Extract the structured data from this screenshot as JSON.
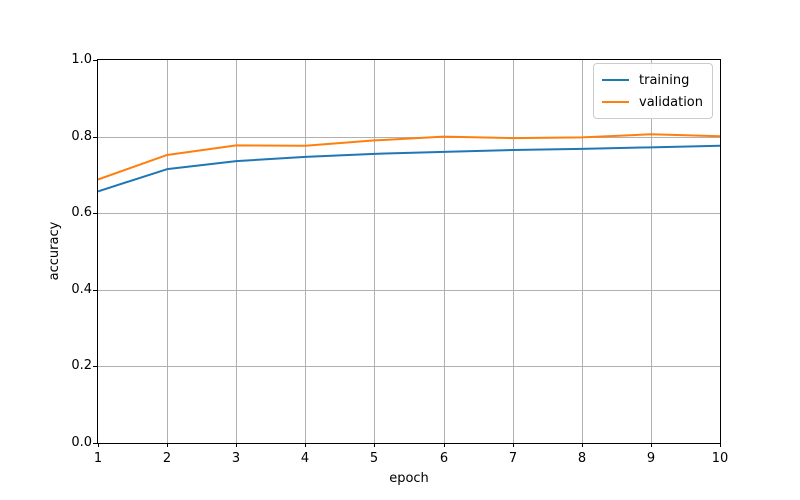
{
  "chart_data": {
    "type": "line",
    "title": "",
    "xlabel": "epoch",
    "ylabel": "accuracy",
    "x": [
      1,
      2,
      3,
      4,
      5,
      6,
      7,
      8,
      9,
      10
    ],
    "series": [
      {
        "name": "training",
        "color": "#1f77b4",
        "values": [
          0.657,
          0.715,
          0.736,
          0.747,
          0.755,
          0.76,
          0.765,
          0.768,
          0.772,
          0.776
        ]
      },
      {
        "name": "validation",
        "color": "#ff7f0e",
        "values": [
          0.688,
          0.752,
          0.777,
          0.776,
          0.79,
          0.8,
          0.796,
          0.798,
          0.806,
          0.801
        ]
      }
    ],
    "xlim": [
      1,
      10
    ],
    "ylim": [
      0.0,
      1.0
    ],
    "x_ticks": [
      "1",
      "2",
      "3",
      "4",
      "5",
      "6",
      "7",
      "8",
      "9",
      "10"
    ],
    "y_ticks": [
      "0.0",
      "0.2",
      "0.4",
      "0.6",
      "0.8",
      "1.0"
    ],
    "grid": true,
    "legend_position": "top-right"
  },
  "colors": {
    "grid": "#b0b0b0",
    "spine": "#000000",
    "background": "#ffffff",
    "text": "#000000"
  }
}
